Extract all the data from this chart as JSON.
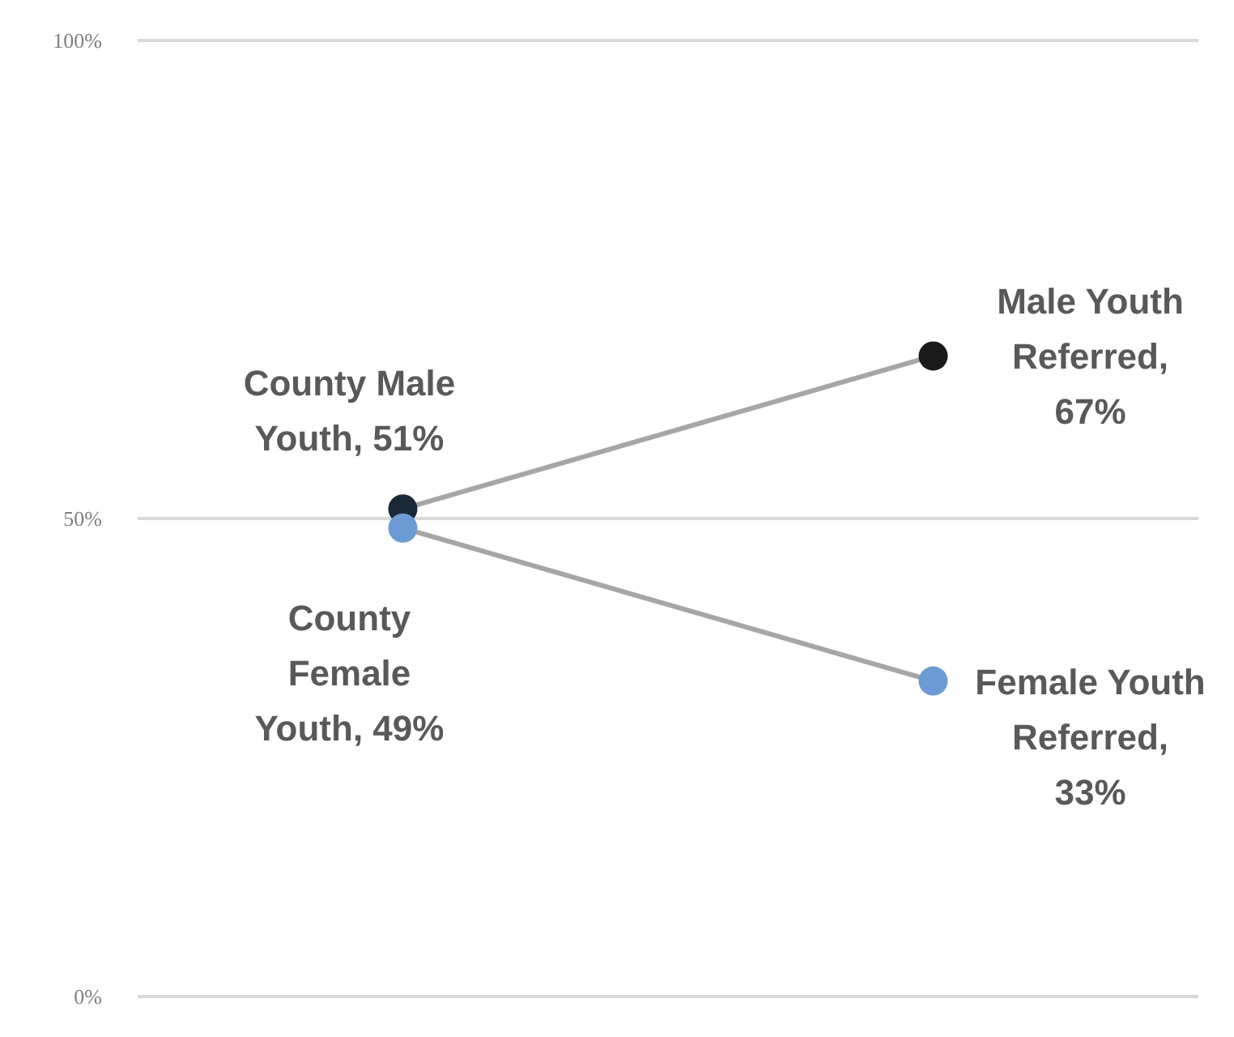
{
  "chart_data": {
    "type": "line",
    "categories": [
      null,
      null
    ],
    "series": [
      {
        "color": "#a6a6a6",
        "colors": [
          "#1b2838",
          "#1a1a1a"
        ],
        "values": [
          51,
          67
        ],
        "value_labels": [
          "County Male Youth, 51%",
          "Male Youth Referred, 67%"
        ]
      },
      {
        "color": "#a6a6a6",
        "colors": [
          "#6b9bd2",
          "#6b9bd2"
        ],
        "values": [
          49,
          33
        ],
        "value_labels": [
          "County Female Youth, 49%",
          "Female Youth Referred, 33%"
        ]
      }
    ],
    "ylim": [
      0,
      100
    ],
    "yticks": [
      {
        "value": 0,
        "label": "0%"
      },
      {
        "value": 50,
        "label": "50%"
      },
      {
        "value": 100,
        "label": "100%"
      }
    ],
    "grid": "y",
    "marker": "circle",
    "line_style": "solid",
    "tick_labels": "y"
  }
}
